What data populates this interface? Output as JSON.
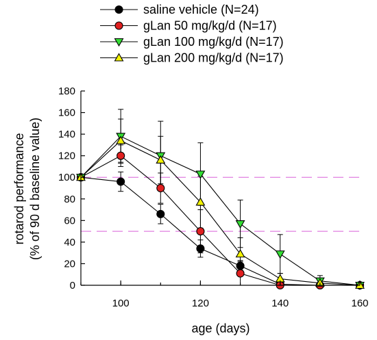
{
  "chart_data": {
    "type": "line",
    "xlabel": "age (days)",
    "ylabel_line1": "rotarod performance",
    "ylabel_line2": "(% of 90 d baseline value)",
    "xlim": [
      90,
      160
    ],
    "ylim": [
      0,
      180
    ],
    "xticks": [
      100,
      120,
      140,
      160
    ],
    "yticks": [
      0,
      20,
      40,
      60,
      80,
      100,
      120,
      140,
      160,
      180
    ],
    "legend_position": "top",
    "reference_lines": [
      {
        "y": 100,
        "color": "#e07ee0",
        "style": "dashed"
      },
      {
        "y": 50,
        "color": "#e07ee0",
        "style": "dashed"
      }
    ],
    "series": [
      {
        "name": "saline vehicle (N=24)",
        "marker": "circle",
        "color": "#000000",
        "x": [
          90,
          100,
          110,
          120,
          130,
          140,
          150,
          160
        ],
        "y": [
          100,
          96,
          66,
          34,
          18,
          1,
          0,
          0
        ],
        "err": [
          0,
          9,
          9,
          8,
          4,
          2,
          1,
          0
        ]
      },
      {
        "name": "gLan 50 mg/kg/d (N=17)",
        "marker": "circle",
        "color": "#e02020",
        "x": [
          90,
          100,
          110,
          120,
          130,
          140,
          150,
          160
        ],
        "y": [
          100,
          120,
          90,
          50,
          11,
          0,
          0,
          0
        ],
        "err": [
          0,
          10,
          14,
          20,
          12,
          2,
          1,
          0
        ]
      },
      {
        "name": "gLan 100 mg/kg/d (N=17)",
        "marker": "triangle-down",
        "color": "#33dd33",
        "x": [
          90,
          100,
          110,
          120,
          130,
          140,
          150,
          160
        ],
        "y": [
          100,
          138,
          120,
          103,
          57,
          29,
          4,
          0
        ],
        "err": [
          0,
          25,
          32,
          29,
          22,
          18,
          5,
          1
        ]
      },
      {
        "name": "gLan 200 mg/kg/d (N=17)",
        "marker": "triangle-up",
        "color": "#f2f200",
        "x": [
          90,
          100,
          110,
          120,
          130,
          140,
          150,
          160
        ],
        "y": [
          100,
          134,
          116,
          77,
          29,
          6,
          2,
          0
        ],
        "err": [
          0,
          20,
          22,
          24,
          15,
          5,
          3,
          0
        ]
      }
    ]
  }
}
